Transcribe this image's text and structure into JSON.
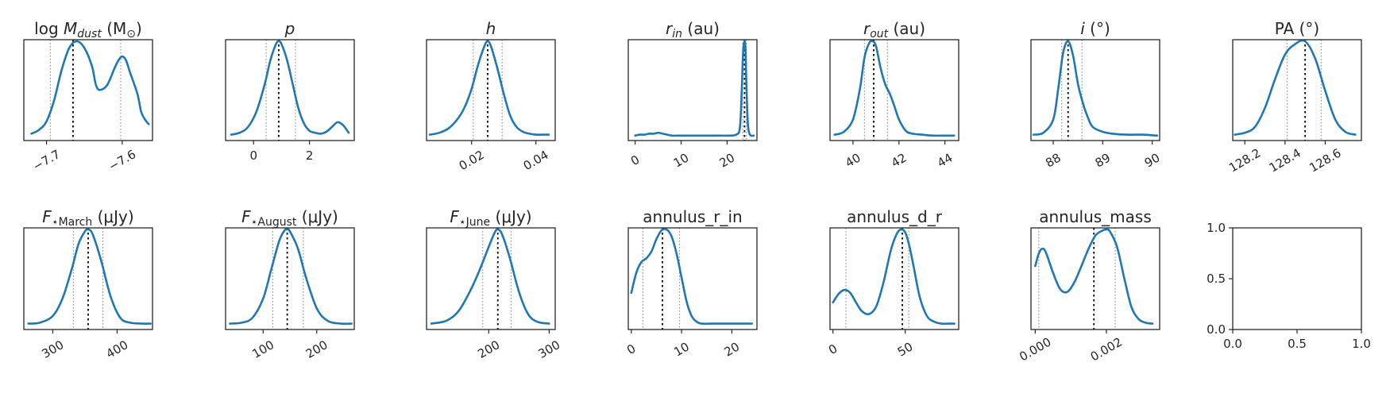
{
  "colors": {
    "curve": "#1f77b4",
    "median": "#000000",
    "quantile": "#888888",
    "axes": "#262626"
  },
  "chart_data": [
    {
      "type": "line",
      "title": "log M_dust (M_⊙)",
      "title_parts": [
        [
          "log ",
          "n"
        ],
        [
          "M",
          "i"
        ],
        [
          "dust",
          "is"
        ],
        [
          " (M",
          "n"
        ],
        [
          "⊙",
          "ns"
        ],
        [
          ")",
          "n"
        ]
      ],
      "xlim": [
        -7.73,
        -7.56
      ],
      "xticks": [
        -7.7,
        -7.6
      ],
      "tick_labels": [
        "−7.7",
        "−7.6"
      ],
      "tick_rotation": -30,
      "median": -7.665,
      "quantiles": [
        -7.695,
        -7.602
      ],
      "x": [
        -7.72,
        -7.71,
        -7.7,
        -7.69,
        -7.68,
        -7.67,
        -7.66,
        -7.65,
        -7.64,
        -7.635,
        -7.63,
        -7.62,
        -7.61,
        -7.605,
        -7.6,
        -7.595,
        -7.59,
        -7.58,
        -7.575,
        -7.57,
        -7.565
      ],
      "y": [
        0.03,
        0.07,
        0.16,
        0.38,
        0.7,
        0.93,
        1.0,
        0.93,
        0.74,
        0.55,
        0.49,
        0.54,
        0.72,
        0.8,
        0.84,
        0.8,
        0.68,
        0.45,
        0.26,
        0.18,
        0.13
      ]
    },
    {
      "type": "line",
      "title": "p",
      "title_parts": [
        [
          "p",
          "i"
        ]
      ],
      "xlim": [
        -1.0,
        3.6
      ],
      "xticks": [
        0,
        2
      ],
      "tick_labels": [
        "0",
        "2"
      ],
      "tick_rotation": 0,
      "median": 0.9,
      "quantiles": [
        0.45,
        1.5
      ],
      "x": [
        -0.8,
        -0.5,
        -0.2,
        0.1,
        0.4,
        0.6,
        0.8,
        0.9,
        1.0,
        1.2,
        1.4,
        1.6,
        1.8,
        2.0,
        2.2,
        2.4,
        2.6,
        2.8,
        3.0,
        3.2,
        3.4
      ],
      "y": [
        0.02,
        0.04,
        0.1,
        0.26,
        0.55,
        0.8,
        0.97,
        1.0,
        0.97,
        0.8,
        0.55,
        0.3,
        0.14,
        0.06,
        0.04,
        0.03,
        0.05,
        0.1,
        0.15,
        0.12,
        0.04
      ]
    },
    {
      "type": "line",
      "title": "h",
      "title_parts": [
        [
          "h",
          "i"
        ]
      ],
      "xlim": [
        0.006,
        0.046
      ],
      "xticks": [
        0.02,
        0.04
      ],
      "tick_labels": [
        "0.02",
        "0.04"
      ],
      "tick_rotation": -30,
      "median": 0.025,
      "quantiles": [
        0.0205,
        0.0295
      ],
      "x": [
        0.007,
        0.01,
        0.013,
        0.016,
        0.018,
        0.02,
        0.022,
        0.024,
        0.025,
        0.026,
        0.028,
        0.03,
        0.032,
        0.034,
        0.036,
        0.038,
        0.04,
        0.042,
        0.044
      ],
      "y": [
        0.02,
        0.04,
        0.09,
        0.2,
        0.32,
        0.5,
        0.75,
        0.95,
        1.0,
        0.95,
        0.72,
        0.45,
        0.22,
        0.1,
        0.05,
        0.03,
        0.02,
        0.02,
        0.02
      ]
    },
    {
      "type": "line",
      "title": "r_in (au)",
      "title_parts": [
        [
          "r",
          "i"
        ],
        [
          "in",
          "is"
        ],
        [
          " (au)",
          "n"
        ]
      ],
      "xlim": [
        -1.5,
        26.5
      ],
      "xticks": [
        0,
        10,
        20
      ],
      "tick_labels": [
        "0",
        "10",
        "20"
      ],
      "tick_rotation": -30,
      "median": 23.8,
      "quantiles": [
        23.4,
        24.2
      ],
      "x": [
        0,
        1,
        2,
        3,
        4,
        5,
        6,
        7,
        8,
        10,
        12,
        14,
        16,
        18,
        20,
        22,
        22.8,
        23.2,
        23.5,
        23.8,
        24.0,
        24.2,
        24.5,
        24.8,
        25.2,
        25.8
      ],
      "y": [
        0.01,
        0.02,
        0.02,
        0.03,
        0.03,
        0.04,
        0.03,
        0.02,
        0.01,
        0.01,
        0.01,
        0.01,
        0.01,
        0.01,
        0.01,
        0.02,
        0.1,
        0.5,
        0.9,
        1.0,
        0.92,
        0.55,
        0.15,
        0.04,
        0.01,
        0.01
      ]
    },
    {
      "type": "line",
      "title": "r_out (au)",
      "title_parts": [
        [
          "r",
          "i"
        ],
        [
          "out",
          "is"
        ],
        [
          " (au)",
          "n"
        ]
      ],
      "xlim": [
        39.0,
        44.6
      ],
      "xticks": [
        40,
        42,
        44
      ],
      "tick_labels": [
        "40",
        "42",
        "44"
      ],
      "tick_rotation": -30,
      "median": 40.9,
      "quantiles": [
        40.5,
        41.5
      ],
      "x": [
        39.2,
        39.6,
        40.0,
        40.3,
        40.5,
        40.7,
        40.85,
        41.0,
        41.2,
        41.4,
        41.6,
        41.8,
        42.0,
        42.3,
        42.6,
        43.0,
        43.5,
        44.0,
        44.4
      ],
      "y": [
        0.02,
        0.05,
        0.18,
        0.5,
        0.83,
        0.98,
        1.0,
        0.95,
        0.72,
        0.55,
        0.45,
        0.32,
        0.18,
        0.06,
        0.03,
        0.02,
        0.01,
        0.01,
        0.01
      ]
    },
    {
      "type": "line",
      "title": "i (°)",
      "title_parts": [
        [
          "i",
          "i"
        ],
        [
          " (°)",
          "n"
        ]
      ],
      "xlim": [
        87.55,
        90.15
      ],
      "xticks": [
        88,
        89,
        90
      ],
      "tick_labels": [
        "88",
        "89",
        "90"
      ],
      "tick_rotation": -30,
      "median": 88.3,
      "quantiles": [
        88.17,
        88.58
      ],
      "x": [
        87.6,
        87.8,
        88.0,
        88.1,
        88.2,
        88.3,
        88.4,
        88.5,
        88.6,
        88.7,
        88.8,
        89.0,
        89.2,
        89.5,
        89.8,
        90.1
      ],
      "y": [
        0.02,
        0.04,
        0.18,
        0.5,
        0.88,
        1.0,
        0.85,
        0.55,
        0.35,
        0.2,
        0.1,
        0.05,
        0.03,
        0.02,
        0.02,
        0.01
      ]
    },
    {
      "type": "line",
      "title": "PA (°)",
      "title_parts": [
        [
          "PA (°)",
          "n"
        ]
      ],
      "xlim": [
        128.14,
        128.78
      ],
      "xticks": [
        128.2,
        128.4,
        128.6
      ],
      "tick_labels": [
        "128.2",
        "128.4",
        "128.6"
      ],
      "tick_rotation": -30,
      "median": 128.5,
      "quantiles": [
        128.41,
        128.58
      ],
      "x": [
        128.15,
        128.2,
        128.25,
        128.3,
        128.35,
        128.4,
        128.45,
        128.5,
        128.55,
        128.6,
        128.65,
        128.7,
        128.75
      ],
      "y": [
        0.02,
        0.04,
        0.1,
        0.3,
        0.6,
        0.86,
        0.97,
        1.0,
        0.82,
        0.48,
        0.18,
        0.05,
        0.02
      ]
    },
    {
      "type": "line",
      "title": "F⋆March (μJy)",
      "title_parts": [
        [
          "F",
          "i"
        ],
        [
          "⋆March",
          "ns"
        ],
        [
          " (μJy)",
          "n"
        ]
      ],
      "xlim": [
        255,
        455
      ],
      "xticks": [
        300,
        400
      ],
      "tick_labels": [
        "300",
        "400"
      ],
      "tick_rotation": -30,
      "median": 355,
      "quantiles": [
        332,
        378
      ],
      "x": [
        262,
        280,
        300,
        315,
        330,
        340,
        350,
        355,
        362,
        375,
        390,
        405,
        420,
        440,
        452
      ],
      "y": [
        0.02,
        0.03,
        0.1,
        0.28,
        0.6,
        0.85,
        0.98,
        1.0,
        0.95,
        0.68,
        0.3,
        0.08,
        0.03,
        0.02,
        0.02
      ]
    },
    {
      "type": "line",
      "title": "F⋆August (μJy)",
      "title_parts": [
        [
          "F",
          "i"
        ],
        [
          "⋆August",
          "ns"
        ],
        [
          " (μJy)",
          "n"
        ]
      ],
      "xlim": [
        30,
        270
      ],
      "xticks": [
        100,
        200
      ],
      "tick_labels": [
        "100",
        "200"
      ],
      "tick_rotation": -30,
      "median": 145,
      "quantiles": [
        118,
        175
      ],
      "x": [
        38,
        60,
        80,
        100,
        115,
        130,
        140,
        145,
        150,
        165,
        180,
        200,
        220,
        245,
        265
      ],
      "y": [
        0.02,
        0.03,
        0.08,
        0.28,
        0.58,
        0.88,
        0.99,
        1.0,
        0.98,
        0.8,
        0.5,
        0.18,
        0.05,
        0.02,
        0.02
      ]
    },
    {
      "type": "line",
      "title": "F⋆June (μJy)",
      "title_parts": [
        [
          "F",
          "i"
        ],
        [
          "⋆June",
          "ns"
        ],
        [
          " (μJy)",
          "n"
        ]
      ],
      "xlim": [
        97,
        310
      ],
      "xticks": [
        200,
        300
      ],
      "tick_labels": [
        "200",
        "300"
      ],
      "tick_rotation": -30,
      "median": 215,
      "quantiles": [
        190,
        237
      ],
      "x": [
        105,
        130,
        150,
        170,
        185,
        200,
        210,
        215,
        222,
        235,
        250,
        265,
        280,
        300
      ],
      "y": [
        0.02,
        0.05,
        0.15,
        0.37,
        0.58,
        0.82,
        0.97,
        1.0,
        0.95,
        0.7,
        0.35,
        0.12,
        0.04,
        0.02
      ]
    },
    {
      "type": "line",
      "title": "annulus_r_in",
      "title_parts": [
        [
          "annulus_r_in",
          "n"
        ]
      ],
      "xlim": [
        -0.6,
        25.0
      ],
      "xticks": [
        0,
        10,
        20
      ],
      "tick_labels": [
        "0",
        "10",
        "20"
      ],
      "tick_rotation": -30,
      "median": 6.2,
      "quantiles": [
        2.3,
        9.6
      ],
      "x": [
        0.0,
        1.0,
        2.0,
        3.0,
        4.0,
        5.0,
        6.0,
        7.0,
        8.0,
        9.0,
        10.0,
        11.0,
        12.0,
        13.0,
        14.0,
        16.0,
        19.0,
        22.0,
        24.0
      ],
      "y": [
        0.34,
        0.55,
        0.66,
        0.7,
        0.77,
        0.9,
        0.99,
        1.0,
        0.93,
        0.75,
        0.5,
        0.25,
        0.1,
        0.04,
        0.02,
        0.02,
        0.02,
        0.02,
        0.02
      ]
    },
    {
      "type": "line",
      "title": "annulus_d_r",
      "title_parts": [
        [
          "annulus_d_r",
          "n"
        ]
      ],
      "xlim": [
        -2,
        87
      ],
      "xticks": [
        0,
        50
      ],
      "tick_labels": [
        "0",
        "50"
      ],
      "tick_rotation": -30,
      "median": 48.0,
      "quantiles": [
        9.0,
        52.5
      ],
      "x": [
        0,
        4,
        8,
        12,
        16,
        20,
        25,
        30,
        35,
        40,
        44,
        47,
        50,
        53,
        56,
        60,
        65,
        70,
        75,
        80,
        84
      ],
      "y": [
        0.24,
        0.33,
        0.37,
        0.34,
        0.24,
        0.15,
        0.12,
        0.2,
        0.45,
        0.78,
        0.95,
        1.0,
        0.97,
        0.82,
        0.6,
        0.3,
        0.1,
        0.04,
        0.02,
        0.02,
        0.02
      ]
    },
    {
      "type": "line",
      "title": "annulus_mass",
      "title_parts": [
        [
          "annulus_mass",
          "n"
        ]
      ],
      "xlim": [
        -0.00012,
        0.0035
      ],
      "xticks": [
        0.0,
        0.002
      ],
      "tick_labels": [
        "0.000",
        "0.002"
      ],
      "tick_rotation": -30,
      "median": 0.00165,
      "quantiles": [
        0.0001,
        0.00225
      ],
      "x": [
        0.0,
        0.0001,
        0.0002,
        0.0003,
        0.0005,
        0.0007,
        0.0009,
        0.0011,
        0.0013,
        0.0015,
        0.0017,
        0.0019,
        0.002,
        0.0021,
        0.0023,
        0.0025,
        0.0027,
        0.0029,
        0.0031,
        0.0033
      ],
      "y": [
        0.62,
        0.75,
        0.8,
        0.76,
        0.55,
        0.38,
        0.35,
        0.45,
        0.62,
        0.8,
        0.94,
        0.99,
        1.0,
        0.98,
        0.82,
        0.5,
        0.2,
        0.07,
        0.03,
        0.02
      ]
    },
    {
      "type": "empty",
      "title": "",
      "xlim": [
        0,
        1
      ],
      "ylim": [
        0,
        1
      ],
      "xticks": [
        0,
        0.5,
        1
      ],
      "x_tick_labels": [
        "0.0",
        "0.5",
        "1.0"
      ],
      "yticks": [
        0,
        0.5,
        1
      ],
      "y_tick_labels": [
        "0.0",
        "0.5",
        "1.0"
      ]
    }
  ]
}
